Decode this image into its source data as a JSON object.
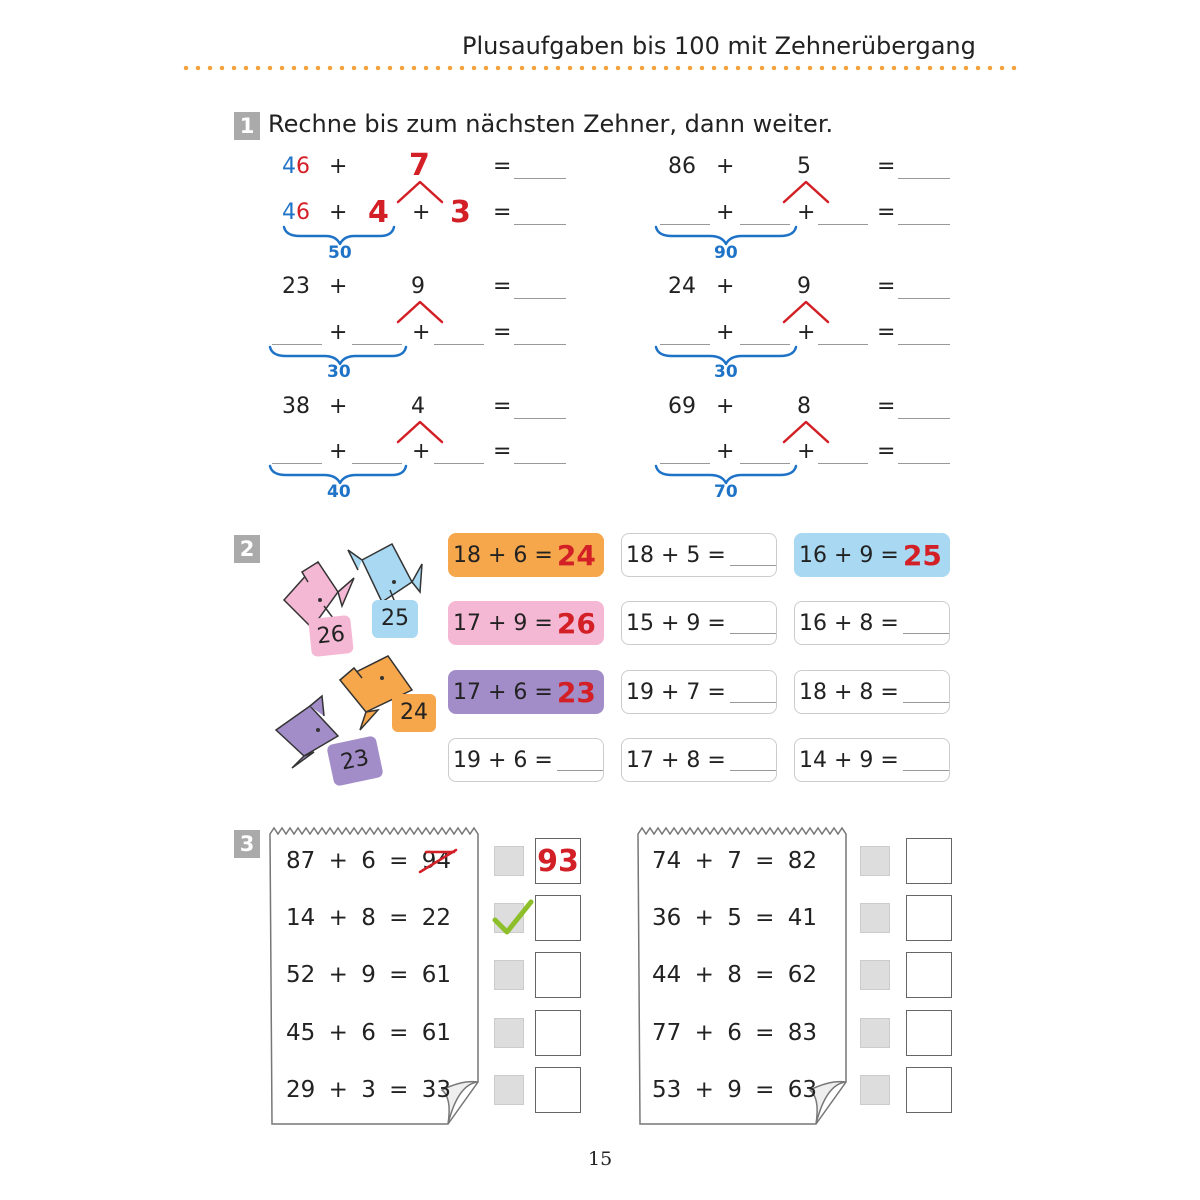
{
  "header": {
    "title": "Plusaufgaben bis 100 mit Zehnerübergang"
  },
  "task1": {
    "number": "1",
    "instruction": "Rechne bis zum nächsten Zehner, dann weiter.",
    "plus": "+",
    "eq": "=",
    "example": {
      "first": "46",
      "first_tens": "4",
      "first_ones": "6",
      "second": "7",
      "split_a": "4",
      "split_b": "3",
      "tens": "50"
    },
    "problems": [
      {
        "first": "86",
        "second": "5",
        "tens": "90"
      },
      {
        "first": "23",
        "second": "9",
        "tens": "30"
      },
      {
        "first": "24",
        "second": "9",
        "tens": "30"
      },
      {
        "first": "38",
        "second": "4",
        "tens": "40"
      },
      {
        "first": "69",
        "second": "8",
        "tens": "70"
      }
    ]
  },
  "task2": {
    "number": "2",
    "stickers": [
      {
        "value": "26",
        "color": "#f5b8d4"
      },
      {
        "value": "25",
        "color": "#a9d8f2"
      },
      {
        "value": "24",
        "color": "#f6a64b"
      },
      {
        "value": "23",
        "color": "#a28dc9"
      }
    ],
    "rows": [
      [
        {
          "expr": "18 + 6 =",
          "answer": "24",
          "color": "#f6a64b"
        },
        {
          "expr": "18 + 5 =",
          "answer": "",
          "color": ""
        },
        {
          "expr": "16 + 9 =",
          "answer": "25",
          "color": "#a9d8f2"
        }
      ],
      [
        {
          "expr": "17 + 9 =",
          "answer": "26",
          "color": "#f5b8d4"
        },
        {
          "expr": "15 + 9 =",
          "answer": "",
          "color": ""
        },
        {
          "expr": "16 + 8 =",
          "answer": "",
          "color": ""
        }
      ],
      [
        {
          "expr": "17 + 6 =",
          "answer": "23",
          "color": "#a28dc9"
        },
        {
          "expr": "19 + 7 =",
          "answer": "",
          "color": ""
        },
        {
          "expr": "18 + 8 =",
          "answer": "",
          "color": ""
        }
      ],
      [
        {
          "expr": "19 + 6 =",
          "answer": "",
          "color": ""
        },
        {
          "expr": "17 + 8 =",
          "answer": "",
          "color": ""
        },
        {
          "expr": "14 + 9 =",
          "answer": "",
          "color": ""
        }
      ]
    ]
  },
  "task3": {
    "number": "3",
    "left": [
      {
        "a": "87",
        "b": "6",
        "c": "94",
        "crossed": true,
        "check": false,
        "correction": "93"
      },
      {
        "a": "14",
        "b": "8",
        "c": "22",
        "crossed": false,
        "check": true,
        "correction": ""
      },
      {
        "a": "52",
        "b": "9",
        "c": "61",
        "crossed": false,
        "check": false,
        "correction": ""
      },
      {
        "a": "45",
        "b": "6",
        "c": "61",
        "crossed": false,
        "check": false,
        "correction": ""
      },
      {
        "a": "29",
        "b": "3",
        "c": "33",
        "crossed": false,
        "check": false,
        "correction": ""
      }
    ],
    "right": [
      {
        "a": "74",
        "b": "7",
        "c": "82"
      },
      {
        "a": "36",
        "b": "5",
        "c": "41"
      },
      {
        "a": "44",
        "b": "8",
        "c": "62"
      },
      {
        "a": "77",
        "b": "6",
        "c": "83"
      },
      {
        "a": "53",
        "b": "9",
        "c": "63"
      }
    ]
  },
  "footer": {
    "page_number": "15"
  },
  "colors": {
    "accent": "#f4a13a",
    "blue": "#1f73c7",
    "red": "#d31f26",
    "check": "#8dbf2a"
  }
}
